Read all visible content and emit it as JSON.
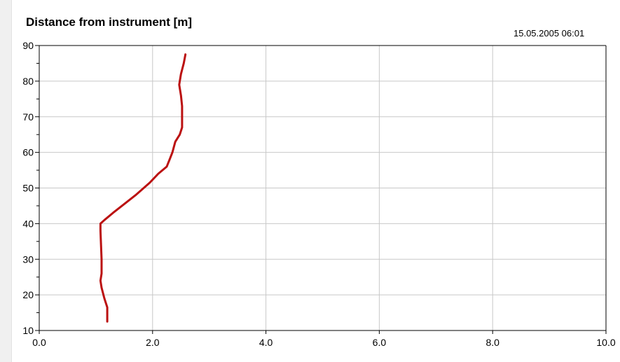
{
  "title": "Distance from instrument [m]",
  "timestamp": "15.05.2005  06:01",
  "colors": {
    "series": "#bb1111",
    "grid": "#c8c8c8",
    "axis": "#000000",
    "background": "#ffffff"
  },
  "chart_data": {
    "type": "line",
    "title": "Distance from instrument [m]",
    "xlabel": "",
    "ylabel": "",
    "xlim": [
      0,
      10
    ],
    "ylim": [
      10,
      90
    ],
    "grid": true,
    "legend": "none",
    "x_ticks": [
      "0.0",
      "2.0",
      "4.0",
      "6.0",
      "8.0",
      "10.0"
    ],
    "x_tick_values": [
      0,
      2,
      4,
      6,
      8,
      10
    ],
    "y_ticks": [
      "10",
      "20",
      "30",
      "40",
      "50",
      "60",
      "70",
      "80",
      "90"
    ],
    "y_tick_values": [
      10,
      20,
      30,
      40,
      50,
      60,
      70,
      80,
      90
    ],
    "series": [
      {
        "points": [
          {
            "x": 1.2,
            "y": 12.5
          },
          {
            "x": 1.2,
            "y": 16.5
          },
          {
            "x": 1.15,
            "y": 19
          },
          {
            "x": 1.1,
            "y": 22
          },
          {
            "x": 1.08,
            "y": 24
          },
          {
            "x": 1.1,
            "y": 26
          },
          {
            "x": 1.1,
            "y": 30
          },
          {
            "x": 1.09,
            "y": 34
          },
          {
            "x": 1.08,
            "y": 38
          },
          {
            "x": 1.08,
            "y": 40
          },
          {
            "x": 1.15,
            "y": 41
          },
          {
            "x": 1.3,
            "y": 43
          },
          {
            "x": 1.5,
            "y": 45.5
          },
          {
            "x": 1.7,
            "y": 48
          },
          {
            "x": 1.95,
            "y": 51.5
          },
          {
            "x": 2.1,
            "y": 54
          },
          {
            "x": 2.25,
            "y": 56
          },
          {
            "x": 2.3,
            "y": 58
          },
          {
            "x": 2.35,
            "y": 60
          },
          {
            "x": 2.4,
            "y": 63
          },
          {
            "x": 2.48,
            "y": 65
          },
          {
            "x": 2.52,
            "y": 67
          },
          {
            "x": 2.52,
            "y": 70
          },
          {
            "x": 2.52,
            "y": 73
          },
          {
            "x": 2.5,
            "y": 76
          },
          {
            "x": 2.47,
            "y": 79
          },
          {
            "x": 2.5,
            "y": 82
          },
          {
            "x": 2.55,
            "y": 85
          },
          {
            "x": 2.58,
            "y": 87.5
          }
        ]
      }
    ]
  }
}
